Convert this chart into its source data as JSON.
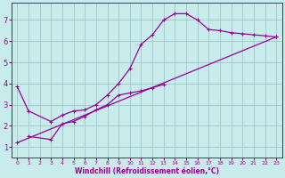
{
  "background_color": "#c8ecec",
  "grid_color": "#a0c8c8",
  "line_color": "#990099",
  "xlabel": "Windchill (Refroidissement éolien,°C)",
  "xlim": [
    -0.5,
    23.5
  ],
  "ylim": [
    0.5,
    7.8
  ],
  "yticks": [
    1,
    2,
    3,
    4,
    5,
    6,
    7
  ],
  "xticks": [
    0,
    1,
    2,
    3,
    4,
    5,
    6,
    7,
    8,
    9,
    10,
    11,
    12,
    13,
    14,
    15,
    16,
    17,
    18,
    19,
    20,
    21,
    22,
    23
  ],
  "series1": {
    "x": [
      0,
      1,
      3,
      4,
      5,
      6,
      7,
      8,
      9,
      10,
      11,
      12,
      13,
      14,
      15,
      16,
      17,
      18,
      19,
      20,
      21,
      22,
      23
    ],
    "y": [
      3.85,
      2.7,
      2.2,
      2.5,
      2.7,
      2.75,
      3.0,
      3.45,
      4.0,
      4.7,
      5.85,
      6.3,
      7.0,
      7.3,
      7.3,
      7.0,
      6.55,
      6.5,
      6.4,
      6.35,
      6.3,
      6.25,
      6.2
    ]
  },
  "series2": {
    "x": [
      1,
      3,
      4,
      5,
      6,
      7,
      8,
      9,
      10,
      11,
      12,
      13
    ],
    "y": [
      1.5,
      1.35,
      2.1,
      2.2,
      2.45,
      2.75,
      3.0,
      3.45,
      3.55,
      3.65,
      3.8,
      3.95
    ]
  },
  "series3": {
    "x": [
      0,
      23
    ],
    "y": [
      1.2,
      6.2
    ]
  }
}
